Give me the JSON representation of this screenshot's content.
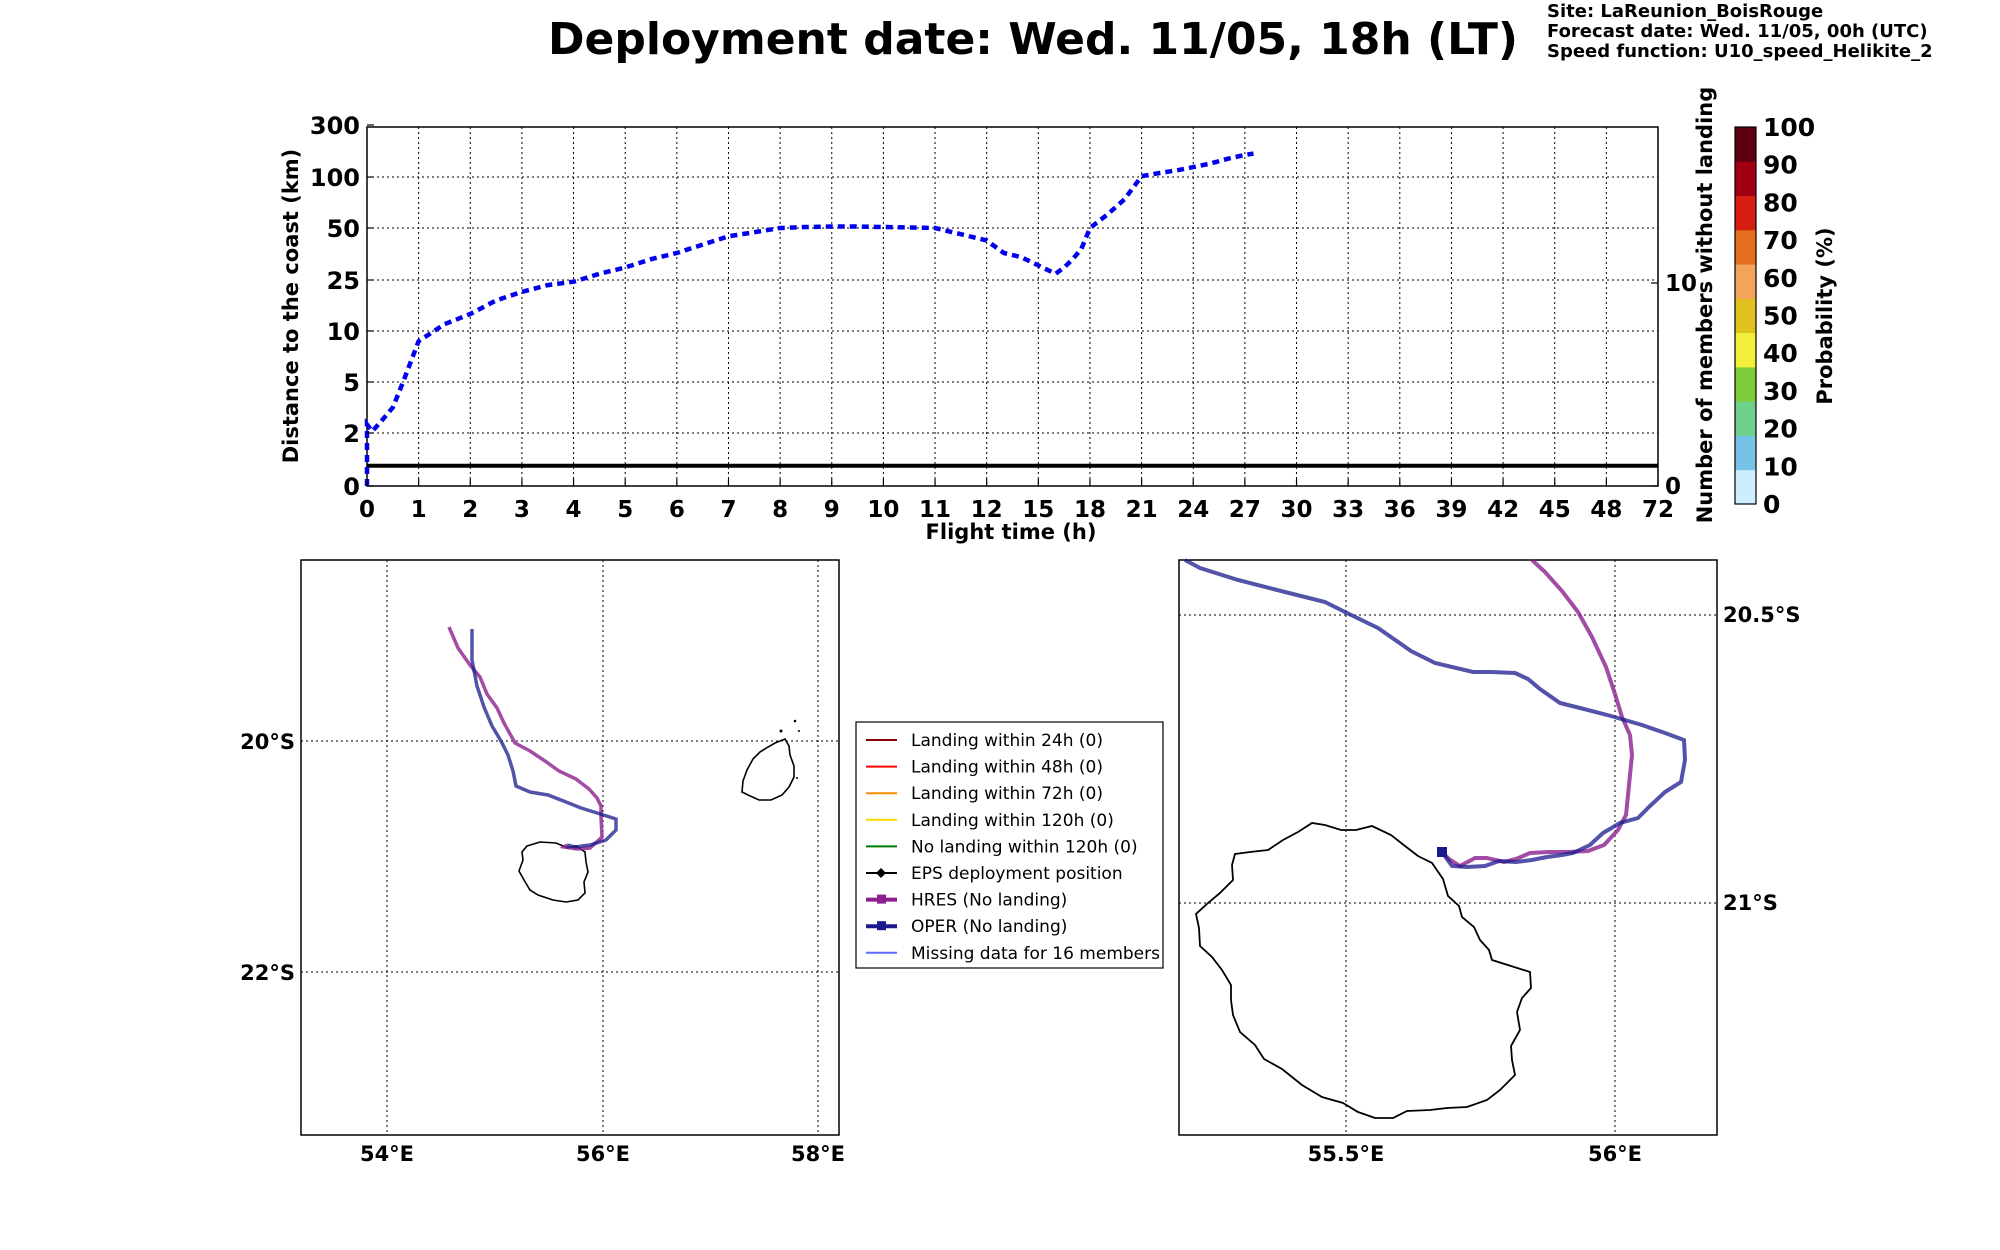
{
  "header": {
    "title": "Deployment date: Wed. 11/05, 18h (LT)",
    "site": "Site: LaReunion_BoisRouge",
    "forecast_date": "Forecast date: Wed. 11/05, 00h (UTC)",
    "speed_function": "Speed function: U10_speed_Helikite_2"
  },
  "colors": {
    "distance_line": "#0000ee",
    "members_line": "#000000",
    "hres": "#8b1f8f",
    "oper": "#1a1a8c",
    "missing": "#5a6cff",
    "landing_24h": "#8b0000",
    "landing_48h": "#ff0000",
    "landing_72h": "#ff8c00",
    "landing_120h": "#ffd700",
    "no_landing": "#007a00",
    "eps": "#000000"
  },
  "chart_data": [
    {
      "type": "line",
      "xlabel": "Flight time (h)",
      "ylabel": "Distance to the coast (km)",
      "y2label": "Number of members without landing",
      "x_ticks": [
        "0",
        "1",
        "2",
        "3",
        "4",
        "5",
        "6",
        "7",
        "8",
        "9",
        "10",
        "11",
        "12",
        "15",
        "18",
        "21",
        "24",
        "27",
        "30",
        "33",
        "36",
        "39",
        "42",
        "45",
        "48",
        "72"
      ],
      "y_ticks": [
        "0",
        "2",
        "5",
        "10",
        "25",
        "50",
        "100",
        "300"
      ],
      "y2_ticks": [
        "0",
        "10"
      ],
      "grid": true,
      "series": [
        {
          "style": "dashed",
          "x": [
            0,
            0.1,
            0.25,
            0.5,
            0.7,
            1,
            1.5,
            2,
            2.5,
            3,
            3.5,
            4,
            4.5,
            5,
            5.5,
            6,
            6.5,
            7,
            7.5,
            8,
            8.5,
            9,
            9.5,
            10,
            10.5,
            11,
            11.5,
            12,
            13,
            14,
            15,
            16,
            16.5,
            17,
            17.5,
            18,
            19,
            20,
            21,
            22,
            23,
            24,
            25,
            26,
            27,
            27.5
          ],
          "y": [
            2.5,
            2.1,
            2.6,
            3.5,
            5,
            9,
            12,
            15,
            19,
            21.5,
            23.5,
            24.5,
            28,
            31,
            35,
            38,
            42,
            46,
            48,
            50,
            51,
            51.5,
            51.5,
            51,
            50.5,
            50,
            47,
            44,
            38,
            36,
            32,
            28,
            31,
            35,
            40,
            50,
            63,
            78,
            103,
            115,
            125,
            138,
            152,
            170,
            185,
            190
          ]
        },
        {
          "style": "solid",
          "x": [
            0,
            72
          ],
          "y2": [
            1,
            1
          ]
        }
      ]
    },
    {
      "type": "scatter",
      "note": "",
      "x_ticks": [
        "54°E",
        "56°E",
        "58°E"
      ],
      "y_ticks": [
        "20°S",
        "22°S"
      ],
      "grid": true
    },
    {
      "type": "scatter",
      "x_ticks": [
        "55.5°E",
        "56°E"
      ],
      "y_ticks": [
        "20.5°S",
        "21°S"
      ],
      "grid": true
    }
  ],
  "colorbar": {
    "label": "Probability (%)",
    "ticks": [
      "0",
      "10",
      "20",
      "30",
      "40",
      "50",
      "60",
      "70",
      "80",
      "90",
      "100"
    ],
    "colors": [
      "#cdeefc",
      "#77c3e8",
      "#6ed08a",
      "#7fcd3c",
      "#f2ee3a",
      "#e1c11c",
      "#f3a35a",
      "#e57020",
      "#d71e10",
      "#a00012",
      "#5e0012"
    ]
  },
  "legend": [
    {
      "label": "Landing within 24h (0)",
      "color": "#8b0000",
      "marker": "none"
    },
    {
      "label": "Landing within 48h (0)",
      "color": "#ff0000",
      "marker": "none"
    },
    {
      "label": "Landing within 72h (0)",
      "color": "#ff8c00",
      "marker": "none"
    },
    {
      "label": "Landing within 120h (0)",
      "color": "#ffd700",
      "marker": "none"
    },
    {
      "label": "No landing within 120h (0)",
      "color": "#007a00",
      "marker": "none"
    },
    {
      "label": "EPS deployment position",
      "color": "#000000",
      "marker": "diamond"
    },
    {
      "label": "HRES (No landing)",
      "color": "#8b1f8f",
      "marker": "square"
    },
    {
      "label": "OPER (No landing)",
      "color": "#1a1a8c",
      "marker": "square"
    },
    {
      "label": "Missing data for 16 members",
      "color": "#5a6cff",
      "marker": "none"
    }
  ]
}
